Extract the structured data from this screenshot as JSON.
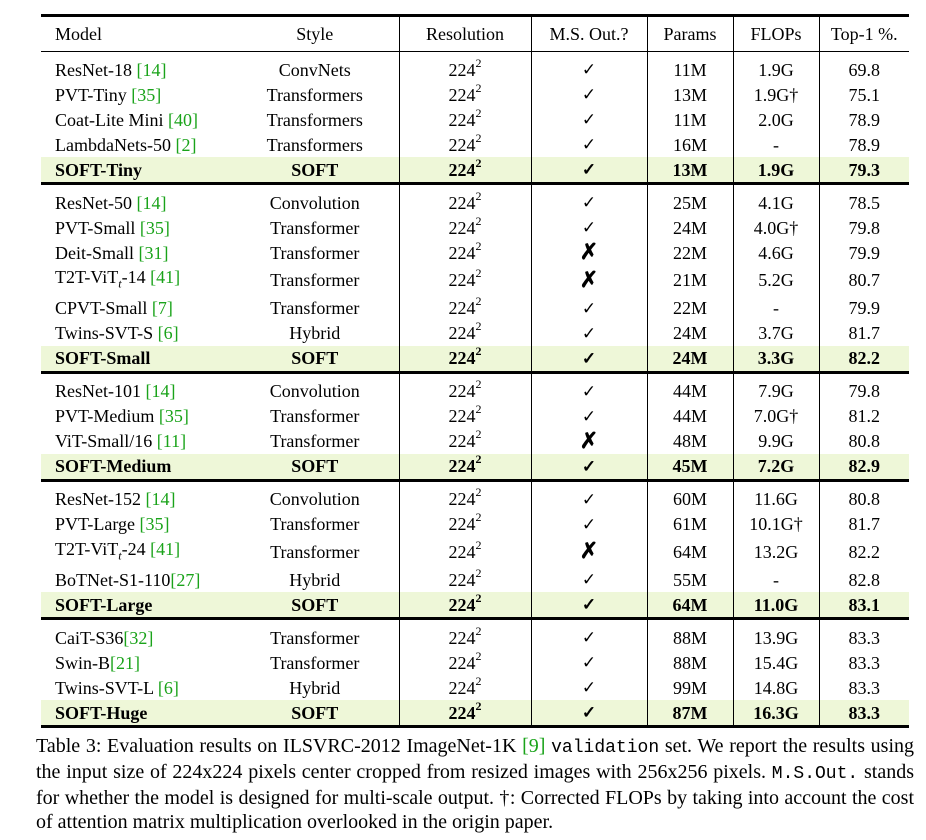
{
  "columns": [
    "Model",
    "Style",
    "Resolution",
    "M.S. Out.?",
    "Params",
    "FLOPs",
    "Top-1 %."
  ],
  "resolution_base": "224",
  "resolution_exp": "2",
  "colors": {
    "highlight": "#eef7d8",
    "reference": "#1aa31a"
  },
  "groups": [
    {
      "rows": [
        {
          "name": "ResNet-18 ",
          "ref": "[14]",
          "style": "ConvNets",
          "ms": "yes",
          "params": "11M",
          "flops": "1.9G",
          "top1": "69.8"
        },
        {
          "name": "PVT-Tiny ",
          "ref": "[35]",
          "style": "Transformers",
          "ms": "yes",
          "params": "13M",
          "flops": "1.9G†",
          "top1": "75.1"
        },
        {
          "name": "Coat-Lite Mini ",
          "ref": "[40]",
          "style": "Transformers",
          "ms": "yes",
          "params": "11M",
          "flops": "2.0G",
          "top1": "78.9"
        },
        {
          "name": "LambdaNets-50 ",
          "ref": "[2]",
          "style": "Transformers",
          "ms": "yes",
          "params": "16M",
          "flops": "-",
          "top1": "78.9"
        },
        {
          "name": "SOFT-Tiny",
          "ref": "",
          "style": "SOFT",
          "ms": "yes",
          "params": "13M",
          "flops": "1.9G",
          "top1": "79.3",
          "highlight": true
        }
      ]
    },
    {
      "rows": [
        {
          "name": "ResNet-50 ",
          "ref": "[14]",
          "style": "Convolution",
          "ms": "yes",
          "params": "25M",
          "flops": "4.1G",
          "top1": "78.5"
        },
        {
          "name": "PVT-Small ",
          "ref": "[35]",
          "style": "Transformer",
          "ms": "yes",
          "params": "24M",
          "flops": "4.0G†",
          "top1": "79.8"
        },
        {
          "name": "Deit-Small ",
          "ref": "[31]",
          "style": "Transformer",
          "ms": "no",
          "params": "22M",
          "flops": "4.6G",
          "top1": "79.9"
        },
        {
          "name": "T2T-ViTt-14 ",
          "ref": "[41]",
          "style": "Transformer",
          "ms": "no",
          "params": "21M",
          "flops": "5.2G",
          "top1": "80.7"
        },
        {
          "name": "CPVT-Small ",
          "ref": "[7]",
          "style": "Transformer",
          "ms": "yes",
          "params": "22M",
          "flops": "-",
          "top1": "79.9"
        },
        {
          "name": "Twins-SVT-S ",
          "ref": "[6]",
          "style": "Hybrid",
          "ms": "yes",
          "params": "24M",
          "flops": "3.7G",
          "top1": "81.7"
        },
        {
          "name": "SOFT-Small",
          "ref": "",
          "style": "SOFT",
          "ms": "yes",
          "params": "24M",
          "flops": "3.3G",
          "top1": "82.2",
          "highlight": true
        }
      ]
    },
    {
      "rows": [
        {
          "name": "ResNet-101 ",
          "ref": "[14]",
          "style": "Convolution",
          "ms": "yes",
          "params": "44M",
          "flops": "7.9G",
          "top1": "79.8"
        },
        {
          "name": "PVT-Medium ",
          "ref": "[35]",
          "style": "Transformer",
          "ms": "yes",
          "params": "44M",
          "flops": "7.0G†",
          "top1": "81.2"
        },
        {
          "name": "ViT-Small/16 ",
          "ref": "[11]",
          "style": "Transformer",
          "ms": "no",
          "params": "48M",
          "flops": "9.9G",
          "top1": "80.8"
        },
        {
          "name": "SOFT-Medium",
          "ref": "",
          "style": "SOFT",
          "ms": "yes",
          "params": "45M",
          "flops": "7.2G",
          "top1": "82.9",
          "highlight": true
        }
      ]
    },
    {
      "rows": [
        {
          "name": "ResNet-152 ",
          "ref": "[14]",
          "style": "Convolution",
          "ms": "yes",
          "params": "60M",
          "flops": "11.6G",
          "top1": "80.8"
        },
        {
          "name": "PVT-Large ",
          "ref": "[35]",
          "style": "Transformer",
          "ms": "yes",
          "params": "61M",
          "flops": "10.1G†",
          "top1": "81.7"
        },
        {
          "name": "T2T-ViTt-24 ",
          "ref": "[41]",
          "style": "Transformer",
          "ms": "no",
          "params": "64M",
          "flops": "13.2G",
          "top1": "82.2"
        },
        {
          "name": "BoTNet-S1-110",
          "ref": "[27]",
          "style": "Hybrid",
          "ms": "yes",
          "params": "55M",
          "flops": "-",
          "top1": "82.8"
        },
        {
          "name": "SOFT-Large",
          "ref": "",
          "style": "SOFT",
          "ms": "yes",
          "params": "64M",
          "flops": "11.0G",
          "top1": "83.1",
          "highlight": true
        }
      ]
    },
    {
      "rows": [
        {
          "name": "CaiT-S36",
          "ref": "[32]",
          "style": "Transformer",
          "ms": "yes",
          "params": "88M",
          "flops": "13.9G",
          "top1": "83.3"
        },
        {
          "name": "Swin-B",
          "ref": "[21]",
          "style": "Transformer",
          "ms": "yes",
          "params": "88M",
          "flops": "15.4G",
          "top1": "83.3"
        },
        {
          "name": "Twins-SVT-L ",
          "ref": "[6]",
          "style": "Hybrid",
          "ms": "yes",
          "params": "99M",
          "flops": "14.8G",
          "top1": "83.3"
        },
        {
          "name": "SOFT-Huge",
          "ref": "",
          "style": "SOFT",
          "ms": "yes",
          "params": "87M",
          "flops": "16.3G",
          "top1": "83.3",
          "highlight": true
        }
      ]
    }
  ],
  "caption": {
    "label": "Table 3:",
    "text_1": " Evaluation results on ILSVRC-2012 ImageNet-1K ",
    "ref": "[9]",
    "mono_1": "validation",
    "text_2": " set. We report the results using the input size of 224x224 pixels center cropped from resized images with 256x256 pixels. ",
    "mono_2": "M.S.Out.",
    "text_3": " stands for whether the model is designed for multi-scale output. †: Corrected FLOPs by taking into account the cost of attention matrix multiplication overlooked in the origin paper."
  }
}
